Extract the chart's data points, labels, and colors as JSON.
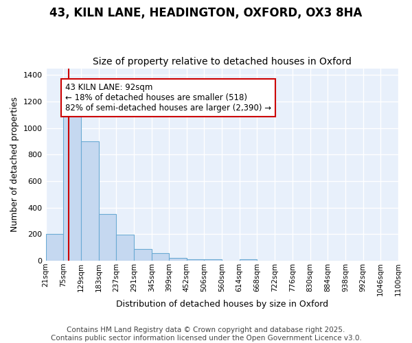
{
  "title1": "43, KILN LANE, HEADINGTON, OXFORD, OX3 8HA",
  "title2": "Size of property relative to detached houses in Oxford",
  "xlabel": "Distribution of detached houses by size in Oxford",
  "ylabel": "Number of detached properties",
  "bin_edges": [
    21,
    75,
    129,
    183,
    237,
    291,
    345,
    399,
    452,
    506,
    560,
    614,
    668,
    722,
    776,
    830,
    884,
    938,
    992,
    1046,
    1100
  ],
  "bar_heights": [
    200,
    1130,
    900,
    350,
    195,
    90,
    58,
    20,
    12,
    10,
    0,
    10,
    0,
    0,
    0,
    0,
    0,
    0,
    0,
    0
  ],
  "bar_color": "#c5d8f0",
  "bar_edge_color": "#6aaad4",
  "fig_background_color": "#ffffff",
  "plot_background_color": "#e8f0fb",
  "grid_color": "#ffffff",
  "red_line_x": 92,
  "annotation_text": "43 KILN LANE: 92sqm\n← 18% of detached houses are smaller (518)\n82% of semi-detached houses are larger (2,390) →",
  "annotation_box_color": "#ffffff",
  "annotation_box_edge_color": "#cc0000",
  "annotation_text_color": "#000000",
  "red_line_color": "#cc0000",
  "footer1": "Contains HM Land Registry data © Crown copyright and database right 2025.",
  "footer2": "Contains public sector information licensed under the Open Government Licence v3.0.",
  "tick_labels": [
    "21sqm",
    "75sqm",
    "129sqm",
    "183sqm",
    "237sqm",
    "291sqm",
    "345sqm",
    "399sqm",
    "452sqm",
    "506sqm",
    "560sqm",
    "614sqm",
    "668sqm",
    "722sqm",
    "776sqm",
    "830sqm",
    "884sqm",
    "938sqm",
    "992sqm",
    "1046sqm",
    "1100sqm"
  ],
  "ylim": [
    0,
    1450
  ],
  "xlim": [
    21,
    1100
  ],
  "yticks": [
    0,
    200,
    400,
    600,
    800,
    1000,
    1200,
    1400
  ],
  "title1_fontsize": 12,
  "title2_fontsize": 10,
  "axis_label_fontsize": 9,
  "tick_fontsize": 7.5,
  "annotation_fontsize": 8.5,
  "footer_fontsize": 7.5
}
